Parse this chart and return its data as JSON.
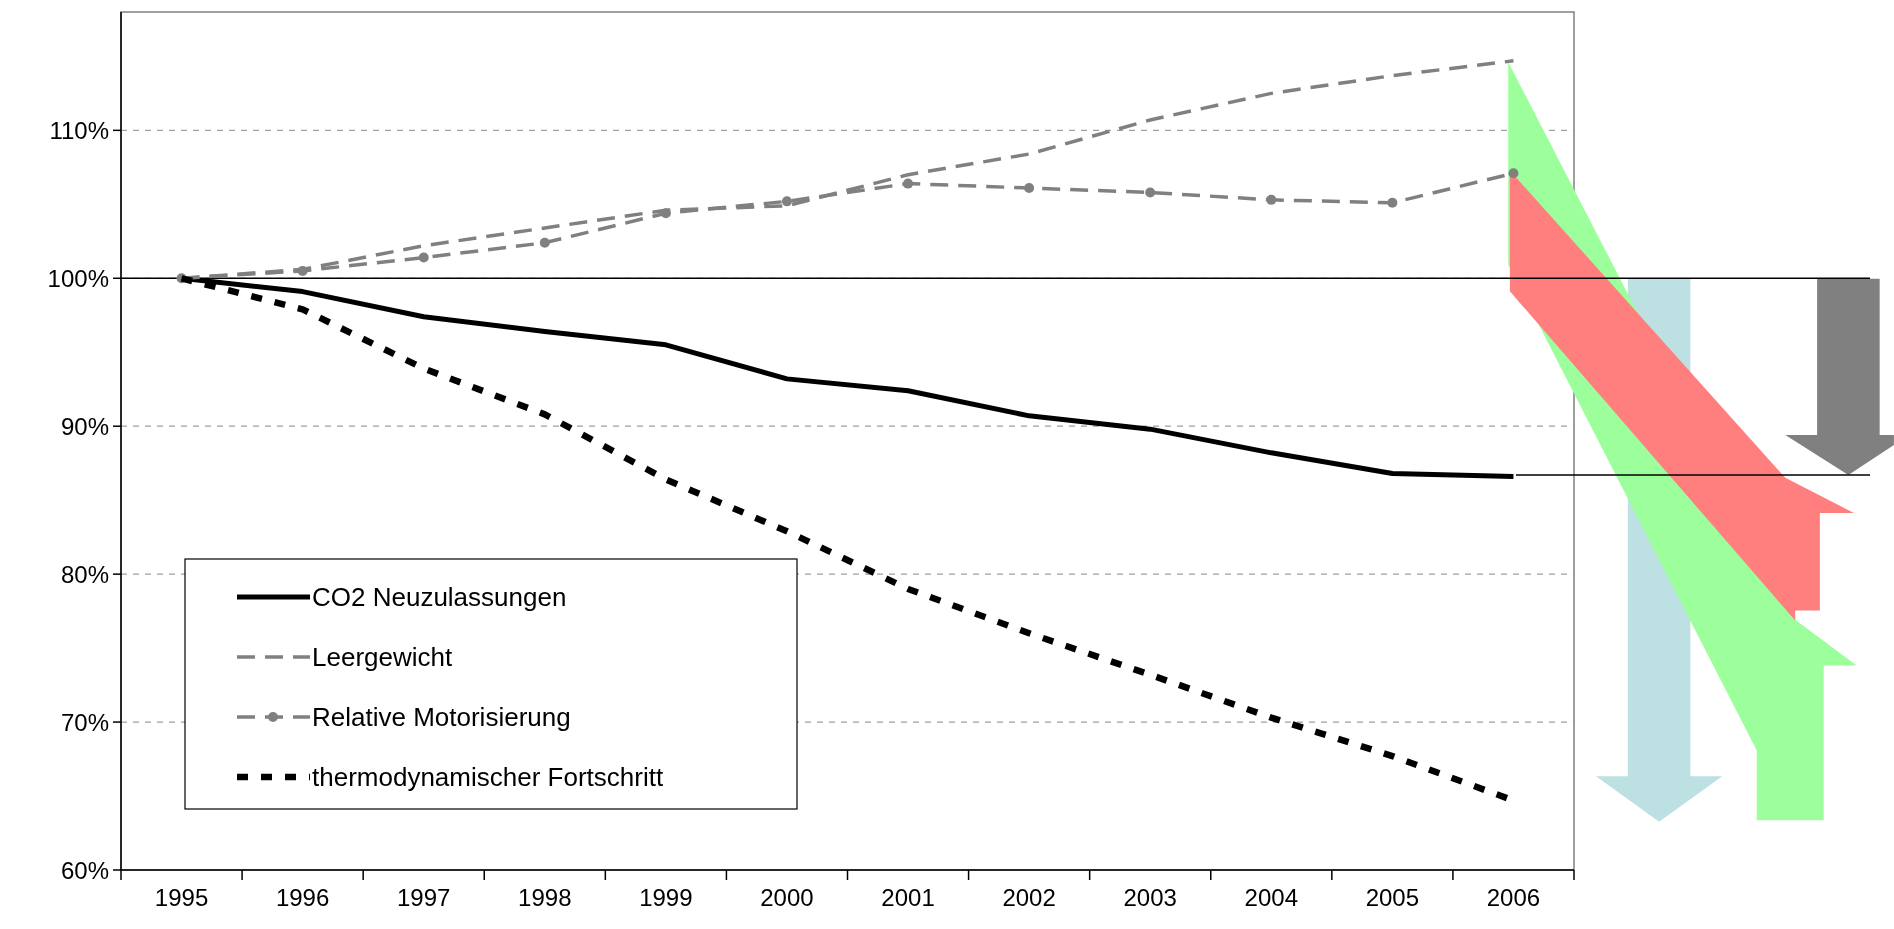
{
  "chart_data": {
    "type": "line",
    "categories": [
      "1995",
      "1996",
      "1997",
      "1998",
      "1999",
      "2000",
      "2001",
      "2002",
      "2003",
      "2004",
      "2005",
      "2006"
    ],
    "series": [
      {
        "name": "CO2 Neuzulassungen",
        "color": "#000000",
        "line_style": "solid",
        "marker": "none",
        "values": [
          100,
          99.1,
          97.4,
          96.4,
          95.5,
          93.2,
          92.4,
          90.7,
          89.8,
          88.2,
          86.8,
          86.6
        ]
      },
      {
        "name": "Leergewicht",
        "color": "#808080",
        "line_style": "dashed",
        "marker": "none",
        "values": [
          100,
          100.6,
          102.2,
          103.4,
          104.6,
          104.9,
          107.0,
          108.4,
          110.7,
          112.5,
          113.7,
          114.7
        ]
      },
      {
        "name": "Relative Motorisierung",
        "color": "#808080",
        "line_style": "dashed",
        "marker": "circle",
        "values": [
          100,
          100.5,
          101.4,
          102.4,
          104.4,
          105.2,
          106.4,
          106.1,
          105.8,
          105.3,
          105.1,
          107.1
        ]
      },
      {
        "name": "thermodynamischer Fortschritt",
        "color": "#000000",
        "line_style": "dotted",
        "marker": "none",
        "values": [
          100,
          97.9,
          93.9,
          90.8,
          86.4,
          82.9,
          79.0,
          76.0,
          73.2,
          70.3,
          67.7,
          64.7
        ]
      }
    ],
    "ylim": [
      60,
      118
    ],
    "yticks": [
      {
        "value": 60,
        "label": "60%"
      },
      {
        "value": 70,
        "label": "70%"
      },
      {
        "value": 80,
        "label": "80%"
      },
      {
        "value": 90,
        "label": "90%"
      },
      {
        "value": 100,
        "label": "100%"
      },
      {
        "value": 110,
        "label": "110%"
      }
    ],
    "grid": "y",
    "legend": "bottom left",
    "ref_lines": [
      {
        "axis": "y",
        "value": 100,
        "color": "#000000"
      }
    ]
  }
}
